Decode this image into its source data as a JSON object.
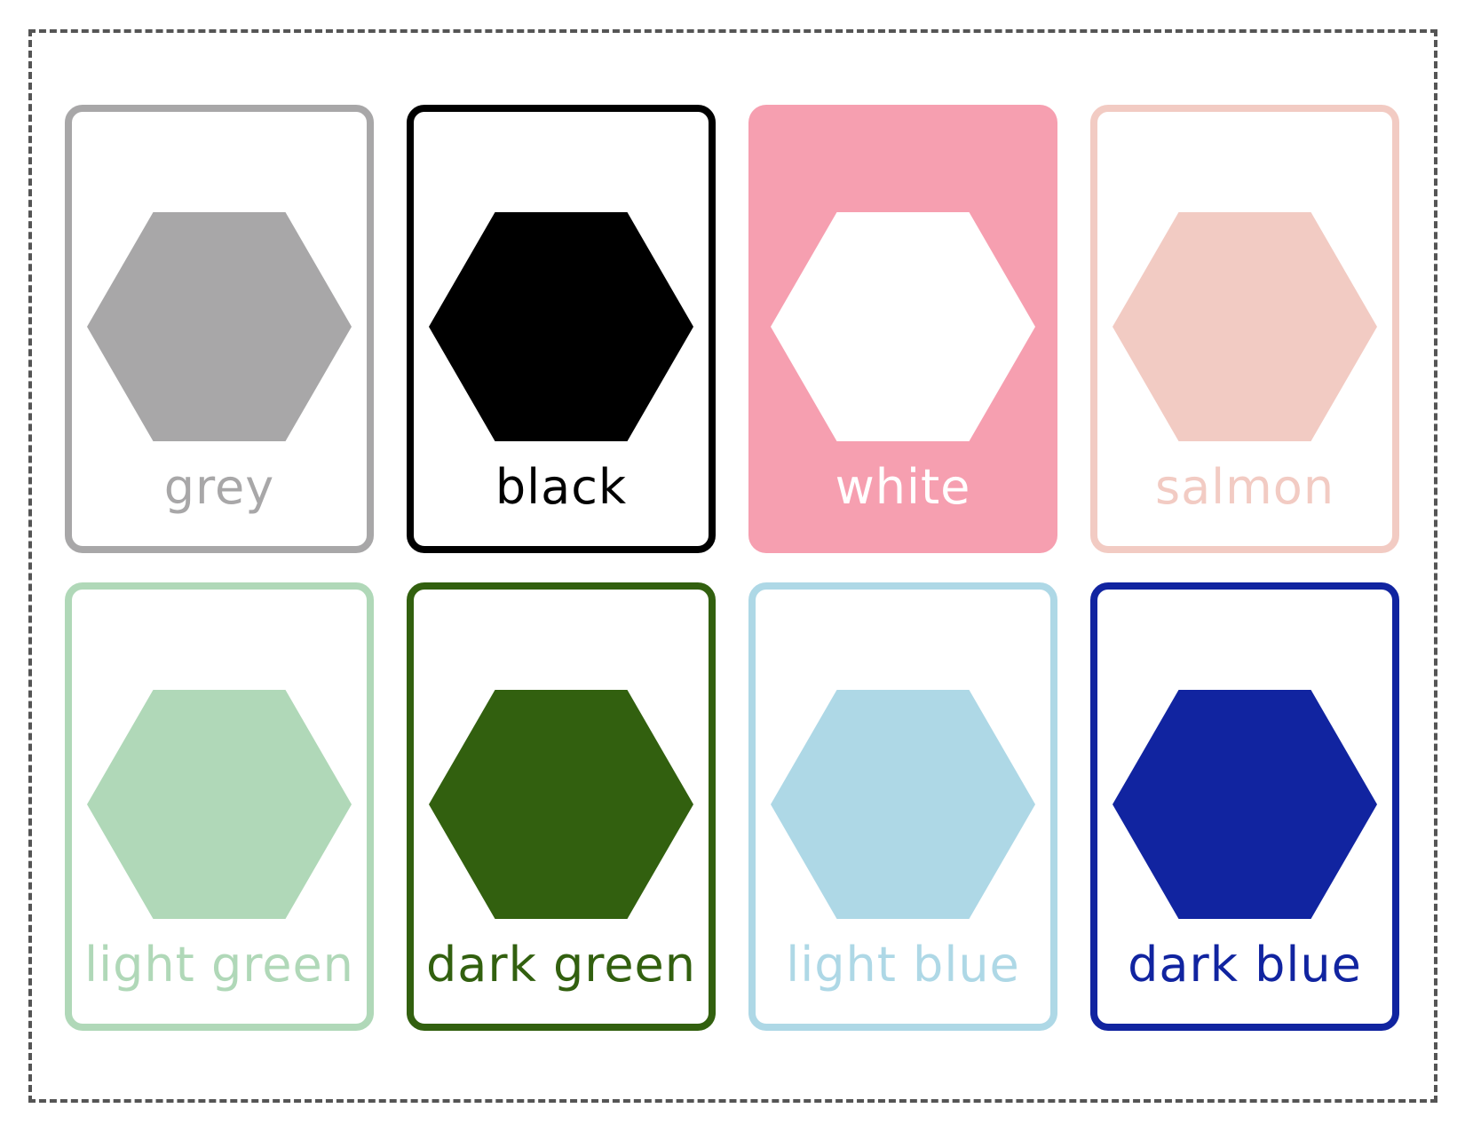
{
  "cards": [
    {
      "label": "grey",
      "color": "#a8a7a8",
      "hex_fill": "#a8a7a8",
      "label_color": "#a8a7a8",
      "background": "#ffffff",
      "style": "outlined"
    },
    {
      "label": "black",
      "color": "#000000",
      "hex_fill": "#000000",
      "label_color": "#000000",
      "background": "#ffffff",
      "style": "outlined"
    },
    {
      "label": "white",
      "color": "#f69fb0",
      "hex_fill": "#ffffff",
      "label_color": "#ffffff",
      "background": "#f69fb0",
      "style": "filled"
    },
    {
      "label": "salmon",
      "color": "#f2cbc3",
      "hex_fill": "#f2cbc3",
      "label_color": "#f2cbc3",
      "background": "#ffffff",
      "style": "outlined"
    },
    {
      "label": "light green",
      "color": "#b0d8b8",
      "hex_fill": "#b0d8b8",
      "label_color": "#b0d8b8",
      "background": "#ffffff",
      "style": "outlined"
    },
    {
      "label": "dark green",
      "color": "#32600f",
      "hex_fill": "#32600f",
      "label_color": "#32600f",
      "background": "#ffffff",
      "style": "outlined"
    },
    {
      "label": "light blue",
      "color": "#aed8e6",
      "hex_fill": "#aed8e6",
      "label_color": "#aed8e6",
      "background": "#ffffff",
      "style": "outlined"
    },
    {
      "label": "dark blue",
      "color": "#1124a0",
      "hex_fill": "#1124a0",
      "label_color": "#1124a0",
      "background": "#ffffff",
      "style": "outlined"
    }
  ]
}
